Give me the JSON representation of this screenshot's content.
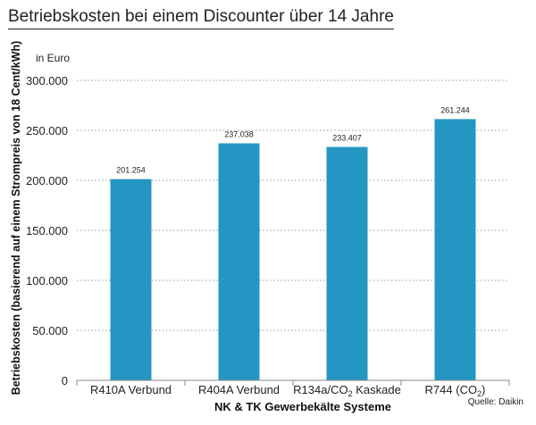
{
  "chart_data": {
    "type": "bar",
    "title": "Betriebskosten bei einem Discounter über 14 Jahre",
    "unit_label": "in Euro",
    "ylabel": "Betriebskosten (basierend auf einem Strompreis von 18 Cent/kWh)",
    "xlabel": "NK & TK Gewerbekälte Systeme",
    "source": "Quelle: Daikin",
    "ylim": [
      0,
      300000
    ],
    "yticks": [
      0,
      50000,
      100000,
      150000,
      200000,
      250000,
      300000
    ],
    "ytick_labels": [
      "0",
      "50.000",
      "100.000",
      "150.000",
      "200.000",
      "250.000",
      "300.000"
    ],
    "grid": "horizontal dotted",
    "bar_color": "#2496c4",
    "categories": [
      {
        "main": "R410A Verbund",
        "sub": "",
        "tail": ""
      },
      {
        "main": "R404A Verbund",
        "sub": "",
        "tail": ""
      },
      {
        "main": "R134a/CO",
        "sub": "2",
        "tail": " Kaskade"
      },
      {
        "main": "R744 (CO",
        "sub": "2",
        "tail": ")"
      }
    ],
    "values": [
      201254,
      237038,
      233407,
      261244
    ],
    "value_labels": [
      "201.254",
      "237.038",
      "233.407",
      "261.244"
    ]
  }
}
